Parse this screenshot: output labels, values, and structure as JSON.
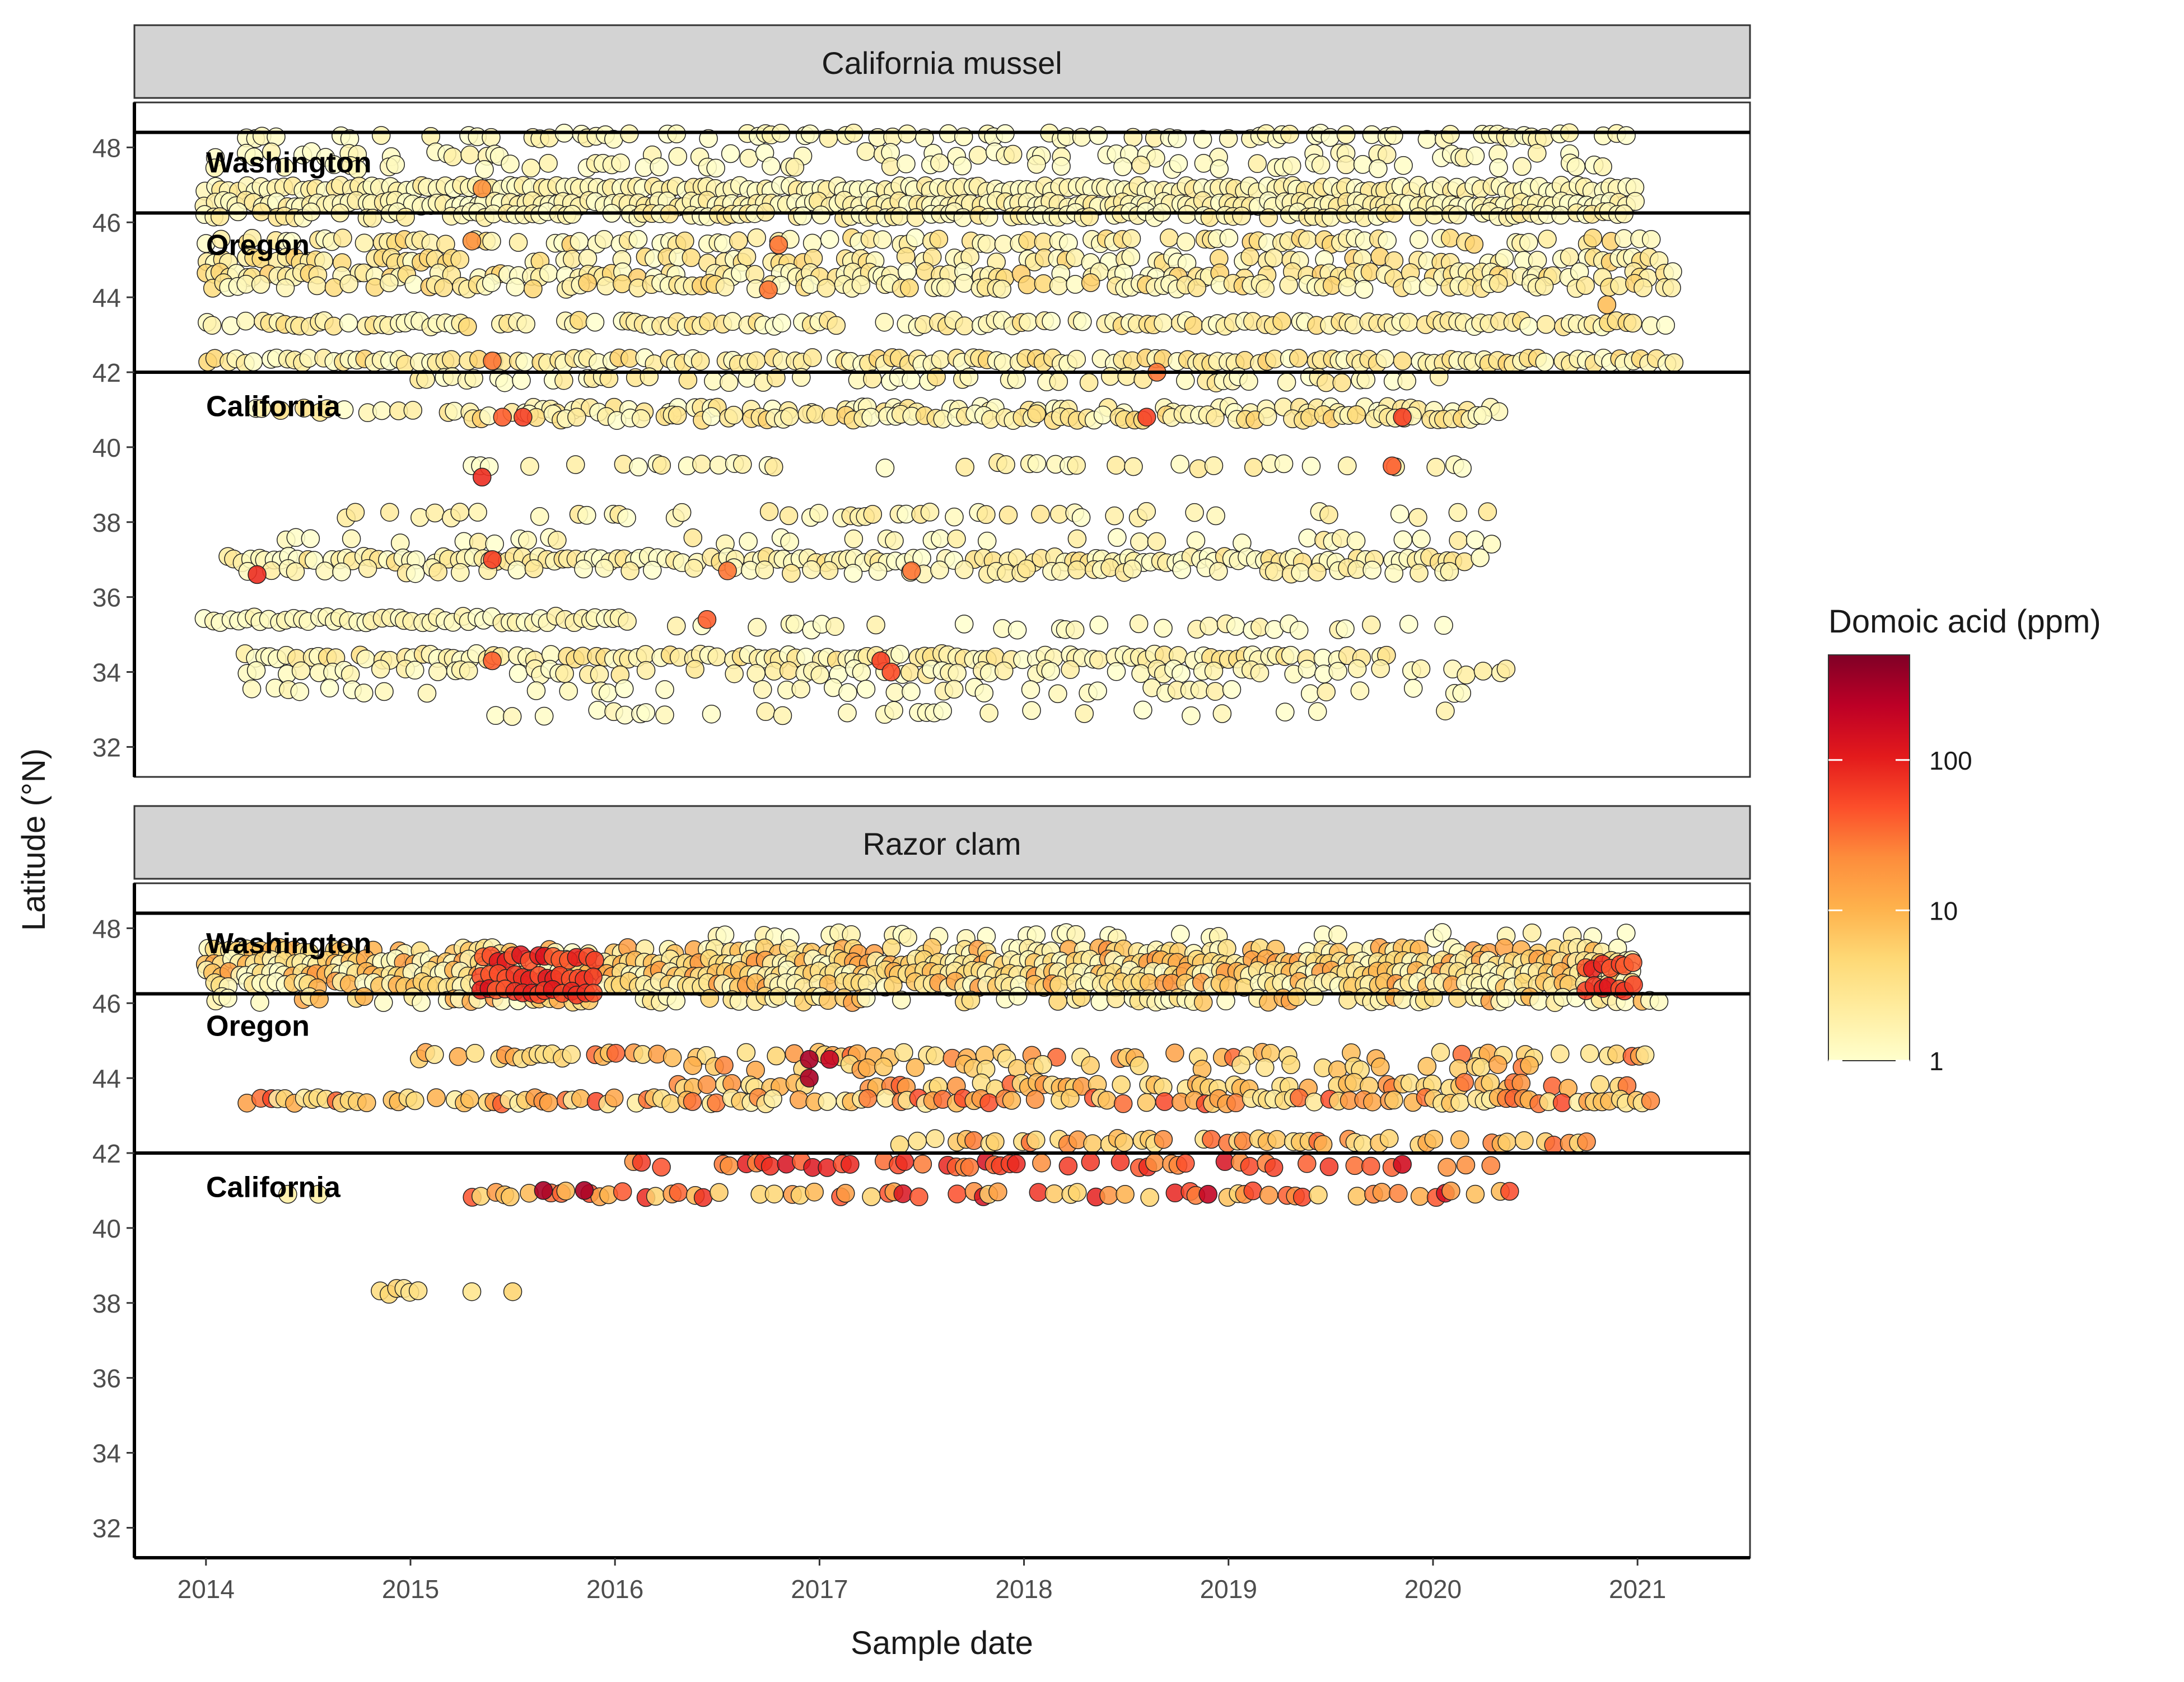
{
  "chart_data": {
    "type": "scatter",
    "xlabel": "Sample date",
    "ylabel": "Latitude (°N)",
    "xlim": [
      2013.65,
      2021.55
    ],
    "ylim": [
      31.2,
      49.2
    ],
    "x_ticks": [
      2014,
      2015,
      2016,
      2017,
      2018,
      2019,
      2020,
      2021
    ],
    "y_ticks": [
      32,
      34,
      36,
      38,
      40,
      42,
      44,
      46,
      48
    ],
    "state_boundaries": [
      46.25,
      42.0,
      48.4
    ],
    "state_labels": [
      {
        "text": "Washington",
        "lat": 47.6
      },
      {
        "text": "Oregon",
        "lat": 45.4
      },
      {
        "text": "California",
        "lat": 41.1
      }
    ],
    "legend": {
      "title": "Domoic acid (ppm)",
      "scale": "log10",
      "breaks": [
        1,
        10,
        100
      ],
      "range": [
        1,
        500
      ],
      "position": "right",
      "colors": [
        "#ffffcc",
        "#ffeda0",
        "#fed976",
        "#feb24c",
        "#fd8d3c",
        "#fc4e2a",
        "#e31a1c",
        "#bd0026",
        "#800026"
      ]
    },
    "panels": [
      {
        "title": "California mussel",
        "bands": [
          {
            "lat": 48.3,
            "x": [
              2014.0,
              2021.0
            ],
            "da": [
              1,
              2
            ],
            "density": 0.45
          },
          {
            "lat": 47.8,
            "x": [
              2014.0,
              2021.0
            ],
            "da": [
              1,
              2
            ],
            "density": 0.3
          },
          {
            "lat": 47.5,
            "x": [
              2014.0,
              2021.0
            ],
            "da": [
              1,
              2
            ],
            "density": 0.3
          },
          {
            "lat": 46.9,
            "x": [
              2014.0,
              2021.0
            ],
            "da": [
              1,
              3
            ],
            "density": 1.0
          },
          {
            "lat": 46.5,
            "x": [
              2014.0,
              2021.0
            ],
            "da": [
              1,
              3
            ],
            "density": 1.0
          },
          {
            "lat": 46.2,
            "x": [
              2014.0,
              2021.0
            ],
            "da": [
              1,
              3
            ],
            "density": 0.7
          },
          {
            "lat": 45.5,
            "x": [
              2014.0,
              2021.2
            ],
            "da": [
              1,
              6
            ],
            "density": 0.55
          },
          {
            "lat": 45.0,
            "x": [
              2014.0,
              2021.2
            ],
            "da": [
              1,
              6
            ],
            "density": 0.55
          },
          {
            "lat": 44.6,
            "x": [
              2014.0,
              2021.2
            ],
            "da": [
              1,
              6
            ],
            "density": 0.6
          },
          {
            "lat": 44.3,
            "x": [
              2014.0,
              2021.2
            ],
            "da": [
              1,
              6
            ],
            "density": 0.6
          },
          {
            "lat": 43.3,
            "x": [
              2014.0,
              2021.2
            ],
            "da": [
              1,
              5
            ],
            "density": 0.75
          },
          {
            "lat": 42.3,
            "x": [
              2014.0,
              2021.2
            ],
            "da": [
              1,
              6
            ],
            "density": 0.85
          },
          {
            "lat": 41.8,
            "x": [
              2015.0,
              2020.3
            ],
            "da": [
              1,
              4
            ],
            "density": 0.45
          },
          {
            "lat": 41.0,
            "x": [
              2014.2,
              2020.4
            ],
            "da": [
              1,
              4
            ],
            "density": 0.5
          },
          {
            "lat": 40.8,
            "x": [
              2015.3,
              2020.3
            ],
            "da": [
              1,
              6
            ],
            "density": 0.75
          },
          {
            "lat": 39.5,
            "x": [
              2015.3,
              2020.2
            ],
            "da": [
              1,
              3
            ],
            "density": 0.3
          },
          {
            "lat": 38.2,
            "x": [
              2014.5,
              2020.3
            ],
            "da": [
              1,
              3
            ],
            "density": 0.3
          },
          {
            "lat": 37.5,
            "x": [
              2014.2,
              2020.3
            ],
            "da": [
              1,
              3
            ],
            "density": 0.3
          },
          {
            "lat": 37.0,
            "x": [
              2014.1,
              2020.3
            ],
            "da": [
              1,
              4
            ],
            "density": 0.85
          },
          {
            "lat": 36.7,
            "x": [
              2014.2,
              2020.2
            ],
            "da": [
              1,
              3
            ],
            "density": 0.4
          },
          {
            "lat": 35.4,
            "x": [
              2014.0,
              2016.1
            ],
            "da": [
              1,
              2
            ],
            "density": 1.0
          },
          {
            "lat": 35.2,
            "x": [
              2016.3,
              2020.2
            ],
            "da": [
              1,
              2
            ],
            "density": 0.3
          },
          {
            "lat": 34.4,
            "x": [
              2014.2,
              2019.8
            ],
            "da": [
              1,
              4
            ],
            "density": 0.85
          },
          {
            "lat": 34.0,
            "x": [
              2014.2,
              2020.4
            ],
            "da": [
              1,
              3
            ],
            "density": 0.45
          },
          {
            "lat": 33.5,
            "x": [
              2014.1,
              2020.2
            ],
            "da": [
              1,
              2
            ],
            "density": 0.25
          },
          {
            "lat": 32.9,
            "x": [
              2015.3,
              2020.3
            ],
            "da": [
              1,
              2
            ],
            "density": 0.2
          }
        ],
        "highlights": [
          {
            "x": 2015.45,
            "lat": 40.8,
            "da": 40
          },
          {
            "x": 2015.55,
            "lat": 40.8,
            "da": 60
          },
          {
            "x": 2015.35,
            "lat": 39.2,
            "da": 80
          },
          {
            "x": 2015.4,
            "lat": 37.0,
            "da": 60
          },
          {
            "x": 2014.25,
            "lat": 36.6,
            "da": 80
          },
          {
            "x": 2015.4,
            "lat": 34.3,
            "da": 40
          },
          {
            "x": 2017.3,
            "lat": 34.3,
            "da": 60
          },
          {
            "x": 2017.35,
            "lat": 34.0,
            "da": 50
          },
          {
            "x": 2016.8,
            "lat": 45.4,
            "da": 30
          },
          {
            "x": 2016.75,
            "lat": 44.2,
            "da": 30
          },
          {
            "x": 2017.45,
            "lat": 36.7,
            "da": 30
          },
          {
            "x": 2016.55,
            "lat": 36.7,
            "da": 30
          },
          {
            "x": 2018.6,
            "lat": 40.8,
            "da": 60
          },
          {
            "x": 2019.85,
            "lat": 40.8,
            "da": 60
          },
          {
            "x": 2019.8,
            "lat": 39.5,
            "da": 40
          },
          {
            "x": 2018.65,
            "lat": 42.0,
            "da": 30
          },
          {
            "x": 2015.4,
            "lat": 42.3,
            "da": 30
          },
          {
            "x": 2015.3,
            "lat": 45.5,
            "da": 20
          },
          {
            "x": 2015.35,
            "lat": 46.9,
            "da": 20
          },
          {
            "x": 2016.45,
            "lat": 35.4,
            "da": 40
          },
          {
            "x": 2020.85,
            "lat": 43.8,
            "da": 8
          }
        ]
      },
      {
        "title": "Razor clam",
        "bands": [
          {
            "lat": 47.8,
            "x": [
              2016.5,
              2021.0
            ],
            "da": [
              1,
              2
            ],
            "density": 0.3
          },
          {
            "lat": 47.4,
            "x": [
              2014.0,
              2021.0
            ],
            "da": [
              1,
              20
            ],
            "density": 0.7
          },
          {
            "lat": 47.1,
            "x": [
              2014.0,
              2021.0
            ],
            "da": [
              1,
              20
            ],
            "density": 1.0
          },
          {
            "lat": 46.8,
            "x": [
              2014.0,
              2021.0
            ],
            "da": [
              1,
              20
            ],
            "density": 1.0
          },
          {
            "lat": 46.5,
            "x": [
              2014.0,
              2021.0
            ],
            "da": [
              1,
              20
            ],
            "density": 0.9
          },
          {
            "lat": 46.1,
            "x": [
              2014.0,
              2021.2
            ],
            "da": [
              1,
              20
            ],
            "density": 0.6
          },
          {
            "lat": 47.2,
            "x": [
              2015.35,
              2015.9
            ],
            "da": [
              40,
              150
            ],
            "density": 1.0
          },
          {
            "lat": 46.7,
            "x": [
              2015.35,
              2015.9
            ],
            "da": [
              40,
              150
            ],
            "density": 1.0
          },
          {
            "lat": 46.3,
            "x": [
              2015.35,
              2015.9
            ],
            "da": [
              40,
              150
            ],
            "density": 1.0
          },
          {
            "lat": 47.0,
            "x": [
              2020.75,
              2021.0
            ],
            "da": [
              40,
              120
            ],
            "density": 1.0
          },
          {
            "lat": 46.4,
            "x": [
              2020.75,
              2021.0
            ],
            "da": [
              40,
              120
            ],
            "density": 1.0
          },
          {
            "lat": 44.6,
            "x": [
              2015.0,
              2021.1
            ],
            "da": [
              3,
              40
            ],
            "density": 0.45
          },
          {
            "lat": 44.3,
            "x": [
              2016.3,
              2020.7
            ],
            "da": [
              3,
              30
            ],
            "density": 0.3
          },
          {
            "lat": 43.8,
            "x": [
              2016.3,
              2021.1
            ],
            "da": [
              3,
              40
            ],
            "density": 0.55
          },
          {
            "lat": 43.4,
            "x": [
              2014.2,
              2021.1
            ],
            "da": [
              2,
              60
            ],
            "density": 0.7
          },
          {
            "lat": 42.3,
            "x": [
              2017.4,
              2020.8
            ],
            "da": [
              3,
              40
            ],
            "density": 0.6
          },
          {
            "lat": 41.7,
            "x": [
              2016.1,
              2020.3
            ],
            "da": [
              20,
              150
            ],
            "density": 0.45
          },
          {
            "lat": 40.9,
            "x": [
              2015.3,
              2020.4
            ],
            "da": [
              5,
              150
            ],
            "density": 0.5
          },
          {
            "lat": 38.3,
            "x": [
              2014.85,
              2015.05
            ],
            "da": [
              3,
              6
            ],
            "density": 1.0
          }
        ],
        "highlights": [
          {
            "x": 2014.4,
            "lat": 40.9,
            "da": 2
          },
          {
            "x": 2014.55,
            "lat": 40.9,
            "da": 2
          },
          {
            "x": 2015.3,
            "lat": 38.3,
            "da": 3
          },
          {
            "x": 2015.5,
            "lat": 38.3,
            "da": 5
          },
          {
            "x": 2015.65,
            "lat": 41.0,
            "da": 300
          },
          {
            "x": 2015.85,
            "lat": 41.0,
            "da": 300
          },
          {
            "x": 2016.95,
            "lat": 44.5,
            "da": 300
          },
          {
            "x": 2016.95,
            "lat": 44.0,
            "da": 300
          },
          {
            "x": 2017.05,
            "lat": 44.5,
            "da": 200
          },
          {
            "x": 2018.9,
            "lat": 40.9,
            "da": 200
          },
          {
            "x": 2019.85,
            "lat": 41.7,
            "da": 150
          }
        ]
      }
    ]
  }
}
